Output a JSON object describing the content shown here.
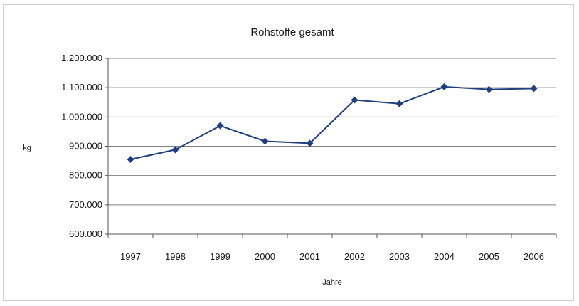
{
  "chart_data": {
    "type": "line",
    "title": "Rohstoffe gesamt",
    "xlabel": "Jahre",
    "ylabel": "kg",
    "categories": [
      "1997",
      "1998",
      "1999",
      "2000",
      "2001",
      "2002",
      "2003",
      "2004",
      "2005",
      "2006"
    ],
    "series": [
      {
        "values": [
          855000,
          888000,
          970000,
          917000,
          910000,
          1058000,
          1045000,
          1103000,
          1094000,
          1097000
        ]
      }
    ],
    "ylim": [
      600000,
      1200000
    ],
    "yticks": [
      600000,
      700000,
      800000,
      900000,
      1000000,
      1100000,
      1200000
    ],
    "ytick_labels": [
      "600.000",
      "700.000",
      "800.000",
      "900.000",
      "1.000.000",
      "1.100.000",
      "1.200.000"
    ],
    "grid": "horizontal",
    "legend": "none",
    "colors": {
      "line": "#1f3f7f",
      "marker": "#1f3f7f",
      "grid": "#7f7f7f",
      "axis": "#555555"
    }
  }
}
